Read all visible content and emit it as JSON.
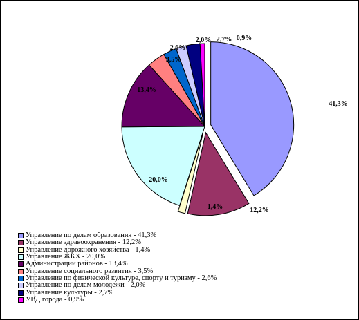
{
  "chart_data": {
    "type": "pie",
    "slices": [
      {
        "label": "Управление по делам образования - 41,3%",
        "value": 41.3,
        "value_label": "41,3%",
        "color": "#9999ff",
        "exploded": true
      },
      {
        "label": "Управление здравоохранения - 12,2%",
        "value": 12.2,
        "value_label": "12,2%",
        "color": "#993366",
        "exploded": true
      },
      {
        "label": "Управление дорожного хозяйства - 1,4%",
        "value": 1.4,
        "value_label": "1,4%",
        "color": "#ffffcc",
        "exploded": true
      },
      {
        "label": "Управление ЖКХ - 20,0%",
        "value": 20.0,
        "value_label": "20,0%",
        "color": "#ccffff",
        "exploded": false
      },
      {
        "label": "Администрации районов - 13,4%",
        "value": 13.4,
        "value_label": "13,4%",
        "color": "#660066",
        "exploded": false
      },
      {
        "label": "Управление социального развития - 3,5%",
        "value": 3.5,
        "value_label": "3,5%",
        "color": "#ff8080",
        "exploded": false
      },
      {
        "label": "Управление по физической культуре, спорту и туризму - 2,6%",
        "value": 2.6,
        "value_label": "2,6%",
        "color": "#0066cc",
        "exploded": false
      },
      {
        "label": "Управление по делам молодежи - 2,0%",
        "value": 2.0,
        "value_label": "2,0%",
        "color": "#ccccff",
        "exploded": false
      },
      {
        "label": "Управление культуры - 2,7%",
        "value": 2.7,
        "value_label": "2,7%",
        "color": "#000080",
        "exploded": false
      },
      {
        "label": "УВД города - 0,9%",
        "value": 0.9,
        "value_label": "0,9%",
        "color": "#ff00ff",
        "exploded": false
      }
    ],
    "legend_position": "bottom-left",
    "start_angle": "12 o'clock",
    "direction": "clockwise"
  }
}
